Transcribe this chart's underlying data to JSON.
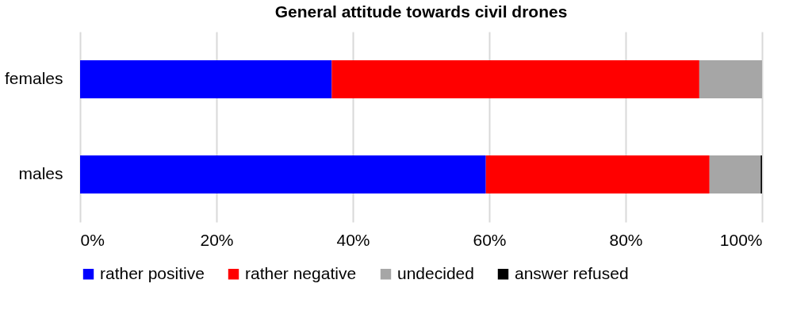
{
  "chart_data": {
    "type": "bar",
    "title": "General attitude towards civil drones",
    "orientation": "horizontal",
    "stacked": true,
    "categories": [
      "females",
      "males"
    ],
    "series": [
      {
        "name": "rather positive",
        "color": "#0000ff",
        "values": [
          36.9,
          59.5
        ]
      },
      {
        "name": "rather negative",
        "color": "#ff0000",
        "values": [
          53.9,
          32.8
        ]
      },
      {
        "name": "undecided",
        "color": "#a6a6a6",
        "values": [
          9.2,
          7.5
        ]
      },
      {
        "name": "answer refused",
        "color": "#000000",
        "values": [
          0,
          0.2
        ]
      }
    ],
    "xlim": [
      0,
      100
    ],
    "xticks": [
      {
        "value": 0,
        "label": "0%"
      },
      {
        "value": 20,
        "label": "20%"
      },
      {
        "value": 40,
        "label": "40%"
      },
      {
        "value": 60,
        "label": "60%"
      },
      {
        "value": 80,
        "label": "80%"
      },
      {
        "value": 100,
        "label": "100%"
      }
    ],
    "grid": "x",
    "legend": "bottom"
  }
}
